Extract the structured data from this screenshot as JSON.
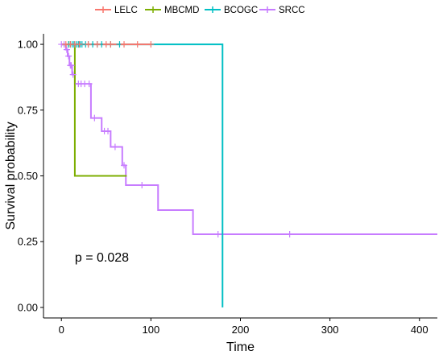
{
  "chart_data": {
    "type": "line",
    "subtype": "kaplan-meier-survival",
    "title": "",
    "xlabel": "Time",
    "ylabel": "Survival probability",
    "xlim": [
      -20,
      420
    ],
    "ylim": [
      -0.04,
      1.04
    ],
    "x_ticks": [
      0,
      100,
      200,
      300,
      400
    ],
    "y_ticks": [
      0.0,
      0.25,
      0.5,
      0.75,
      1.0
    ],
    "y_tick_labels": [
      "0.00",
      "0.25",
      "0.50",
      "0.75",
      "1.00"
    ],
    "grid": false,
    "legend_position": "top",
    "annotation": "p = 0.028",
    "annotation_at": [
      15,
      0.19
    ],
    "series": [
      {
        "name": "LELC",
        "color": "#F8766D",
        "steps": [
          [
            0,
            1.0
          ],
          [
            100,
            1.0
          ]
        ],
        "censored": [
          [
            5,
            1.0
          ],
          [
            10,
            1.0
          ],
          [
            15,
            1.0
          ],
          [
            20,
            1.0
          ],
          [
            30,
            1.0
          ],
          [
            40,
            1.0
          ],
          [
            50,
            1.0
          ],
          [
            55,
            1.0
          ],
          [
            70,
            1.0
          ],
          [
            85,
            1.0
          ],
          [
            100,
            1.0
          ]
        ]
      },
      {
        "name": "MBCMD",
        "color": "#7CAE00",
        "steps": [
          [
            0,
            1.0
          ],
          [
            15,
            1.0
          ],
          [
            15,
            0.5
          ],
          [
            73,
            0.5
          ]
        ],
        "censored": [
          [
            8,
            1.0
          ]
        ]
      },
      {
        "name": "BCOGC",
        "color": "#00BFC4",
        "steps": [
          [
            0,
            1.0
          ],
          [
            180,
            1.0
          ],
          [
            180,
            0.0
          ]
        ],
        "censored": [
          [
            8,
            1.0
          ],
          [
            10,
            1.0
          ],
          [
            12,
            1.0
          ],
          [
            14,
            1.0
          ],
          [
            17,
            1.0
          ],
          [
            19,
            1.0
          ],
          [
            21,
            1.0
          ],
          [
            23,
            1.0
          ],
          [
            27,
            1.0
          ],
          [
            30,
            1.0
          ],
          [
            35,
            1.0
          ],
          [
            40,
            1.0
          ],
          [
            45,
            1.0
          ],
          [
            55,
            1.0
          ],
          [
            65,
            1.0
          ]
        ]
      },
      {
        "name": "SRCC",
        "color": "#C77CFF",
        "steps": [
          [
            0,
            1.0
          ],
          [
            5,
            1.0
          ],
          [
            5,
            0.98
          ],
          [
            7,
            0.98
          ],
          [
            7,
            0.955
          ],
          [
            9,
            0.955
          ],
          [
            9,
            0.92
          ],
          [
            12,
            0.92
          ],
          [
            12,
            0.885
          ],
          [
            15,
            0.885
          ],
          [
            15,
            0.85
          ],
          [
            33,
            0.85
          ],
          [
            33,
            0.72
          ],
          [
            45,
            0.72
          ],
          [
            45,
            0.67
          ],
          [
            55,
            0.67
          ],
          [
            55,
            0.61
          ],
          [
            68,
            0.61
          ],
          [
            68,
            0.54
          ],
          [
            72,
            0.54
          ],
          [
            72,
            0.465
          ],
          [
            108,
            0.465
          ],
          [
            108,
            0.37
          ],
          [
            147,
            0.37
          ],
          [
            147,
            0.278
          ],
          [
            420,
            0.278
          ]
        ],
        "censored": [
          [
            0,
            1.0
          ],
          [
            3,
            1.0
          ],
          [
            6,
            0.98
          ],
          [
            8,
            0.955
          ],
          [
            10,
            0.92
          ],
          [
            11,
            0.92
          ],
          [
            13,
            0.885
          ],
          [
            19,
            0.85
          ],
          [
            22,
            0.85
          ],
          [
            26,
            0.85
          ],
          [
            31,
            0.85
          ],
          [
            37,
            0.72
          ],
          [
            48,
            0.67
          ],
          [
            52,
            0.67
          ],
          [
            60,
            0.61
          ],
          [
            70,
            0.54
          ],
          [
            90,
            0.465
          ],
          [
            175,
            0.278
          ],
          [
            255,
            0.278
          ]
        ]
      }
    ]
  }
}
